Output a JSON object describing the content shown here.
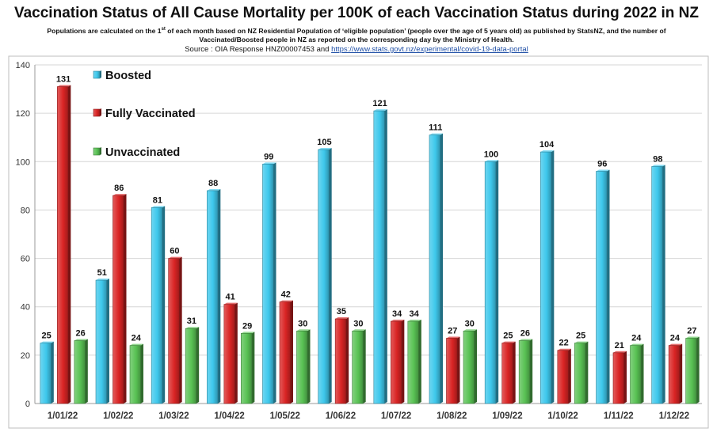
{
  "title": "Vaccination Status of All Cause Mortality per 100K of each Vaccination Status during 2022 in NZ",
  "subtitle_line1_pre": "Populations are calculated on the 1",
  "subtitle_line1_sup": "st",
  "subtitle_line1_post": " of each month based on NZ Residential Population of ‘eligible population’ (people over the age of 5 years old) as published by StatsNZ, and the number of",
  "subtitle_line2": "Vaccinated/Boosted people in NZ as reported on the corresponding day by the Ministry of Health.",
  "source_prefix": "Source : OIA Response HNZ00007453 and ",
  "source_link": "https://www.stats.govt.nz/experimental/covid-19-data-portal",
  "colors": {
    "boosted": "#3ec8ec",
    "fully_vaccinated": "#d92424",
    "unvaccinated": "#59c254",
    "grid": "#d6d6d6",
    "frame": "#bdbdbd"
  },
  "chart_data": {
    "type": "bar",
    "categories": [
      "1/01/22",
      "1/02/22",
      "1/03/22",
      "1/04/22",
      "1/05/22",
      "1/06/22",
      "1/07/22",
      "1/08/22",
      "1/09/22",
      "1/10/22",
      "1/11/22",
      "1/12/22"
    ],
    "series": [
      {
        "name": "Boosted",
        "values": [
          25,
          51,
          81,
          88,
          99,
          105,
          121,
          111,
          100,
          104,
          96,
          98
        ]
      },
      {
        "name": "Fully Vaccinated",
        "values": [
          131,
          86,
          60,
          41,
          42,
          35,
          34,
          27,
          25,
          22,
          21,
          24
        ]
      },
      {
        "name": "Unvaccinated",
        "values": [
          26,
          24,
          31,
          29,
          30,
          30,
          34,
          30,
          26,
          25,
          24,
          27
        ]
      }
    ],
    "ylim": [
      0,
      140
    ],
    "yticks": [
      0,
      20,
      40,
      60,
      80,
      100,
      120,
      140
    ],
    "grid": true,
    "legend_position": "top-left",
    "data_labels": true
  }
}
